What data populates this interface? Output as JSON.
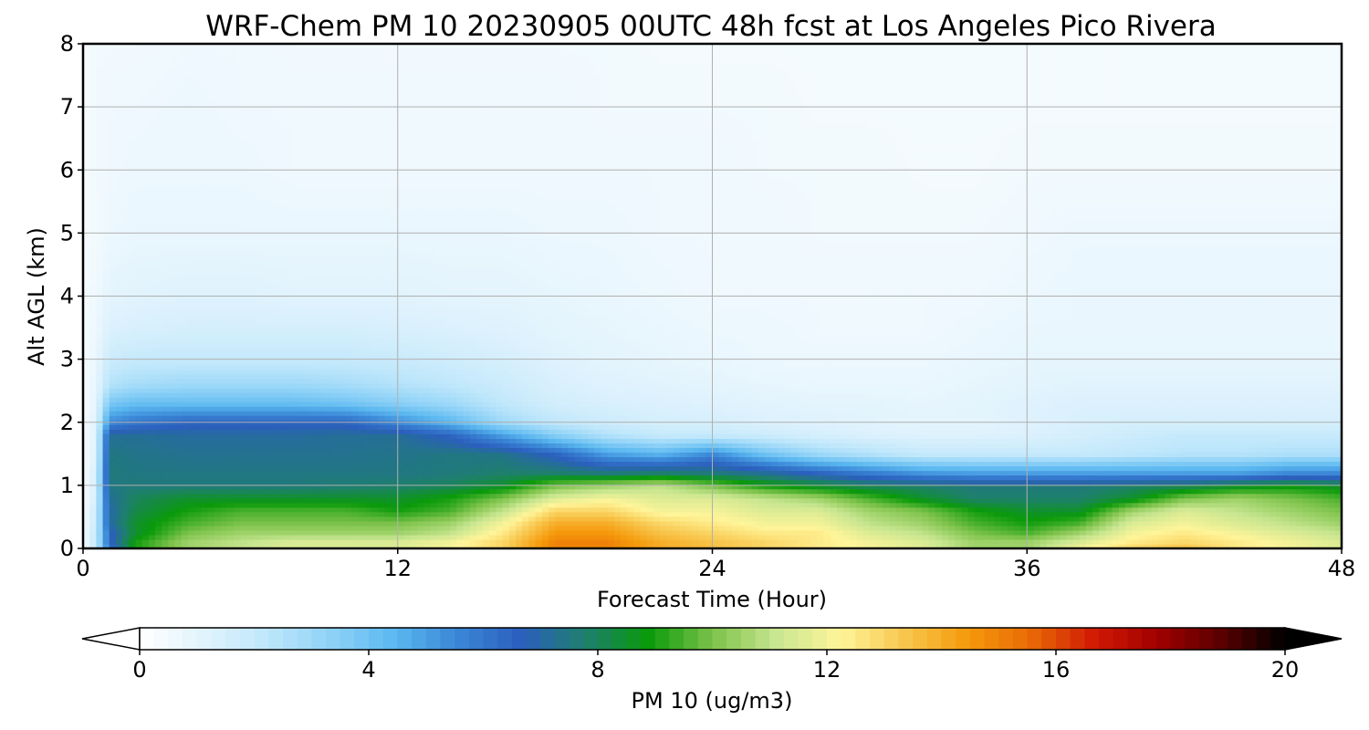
{
  "chart_data": {
    "type": "heatmap",
    "title": "WRF-Chem PM 10  20230905 00UTC 48h fcst at Los Angeles Pico Rivera",
    "xlabel": "Forecast Time (Hour)",
    "ylabel": "Alt AGL (km)",
    "xlim": [
      0,
      48
    ],
    "ylim": [
      0,
      8
    ],
    "xticks": [
      "0",
      "12",
      "24",
      "36",
      "48"
    ],
    "yticks": [
      "0",
      "1",
      "2",
      "3",
      "4",
      "5",
      "6",
      "7",
      "8"
    ],
    "grid": true,
    "colorbar": {
      "label": "PM 10  (ug/m3)",
      "range": [
        0,
        20
      ],
      "extend": "both",
      "ticks": [
        "0",
        "4",
        "8",
        "12",
        "16",
        "20"
      ],
      "orientation": "horizontal"
    },
    "x": [
      0,
      0.5,
      1,
      2,
      4,
      6,
      8,
      10,
      12,
      14,
      16,
      18,
      20,
      22,
      24,
      26,
      28,
      30,
      32,
      34,
      36,
      38,
      40,
      42,
      44,
      46,
      48
    ],
    "y": [
      0,
      0.1,
      0.25,
      0.4,
      0.6,
      0.8,
      1.0,
      1.2,
      1.5,
      1.8,
      2.0,
      2.3,
      2.6,
      3.0,
      3.5,
      4.0,
      5.0,
      6.0,
      7.0,
      8.0
    ],
    "z": [
      [
        0.5,
        2,
        6,
        9,
        10.5,
        11,
        11.5,
        11.5,
        11.5,
        12,
        13,
        15,
        15,
        14,
        13.5,
        13,
        12.5,
        12,
        11.5,
        10.5,
        10.5,
        12,
        13,
        13.5,
        12.5,
        12,
        11.5
      ],
      [
        0.5,
        2,
        6.5,
        9,
        10.5,
        11,
        11.5,
        11.5,
        11.5,
        12,
        13,
        15,
        15,
        14,
        13.5,
        13,
        12.5,
        12,
        11.5,
        10.5,
        10.5,
        11.5,
        12.5,
        13,
        12.5,
        12,
        11.5
      ],
      [
        0.5,
        2,
        6.5,
        8.5,
        10,
        10.5,
        10.5,
        10.5,
        10.5,
        11,
        12.5,
        14.5,
        14.5,
        13.5,
        13,
        12.5,
        12.5,
        11.5,
        11,
        10,
        9.5,
        10.5,
        12,
        12.5,
        12,
        11.5,
        11
      ],
      [
        0.4,
        1.8,
        7,
        8.5,
        9.5,
        10,
        10,
        10,
        10,
        10.5,
        12,
        14,
        14,
        13,
        12.5,
        12,
        12,
        11,
        10.5,
        9.5,
        9,
        9.5,
        11.5,
        12,
        11.5,
        11,
        10.5
      ],
      [
        0.4,
        1.8,
        7,
        8.2,
        9,
        9.5,
        9.5,
        9.5,
        9,
        9.5,
        11,
        13,
        13,
        12,
        12,
        11.5,
        11.5,
        10.5,
        10,
        9,
        8.5,
        8.5,
        10.5,
        11.5,
        11,
        10.5,
        10
      ],
      [
        0.3,
        1.5,
        7.2,
        8,
        8.5,
        8.5,
        8.5,
        8.5,
        8.5,
        9,
        10,
        11.5,
        12,
        11.5,
        11.5,
        11,
        10.5,
        9.5,
        8.5,
        7.8,
        7.8,
        7.8,
        8.5,
        10,
        10.5,
        10,
        9.5
      ],
      [
        0.3,
        1.5,
        7.5,
        7.6,
        7.6,
        7.6,
        7.6,
        7.7,
        7.8,
        8,
        8.5,
        10,
        10.5,
        11,
        10,
        9,
        8.5,
        8,
        7.8,
        7.6,
        7.6,
        7.6,
        7.8,
        8,
        8.5,
        8.8,
        8.5
      ],
      [
        0.3,
        1.5,
        7.6,
        7.5,
        7.5,
        7.5,
        7.5,
        7.5,
        7.5,
        7.6,
        7.8,
        7.8,
        7.6,
        7.8,
        7.6,
        7.2,
        6.5,
        5.8,
        5.2,
        5,
        5,
        5,
        5,
        5,
        5,
        5.5,
        5.5
      ],
      [
        0.3,
        1.2,
        7.5,
        7.4,
        7.3,
        7.3,
        7.3,
        7.3,
        7.4,
        7.5,
        7.4,
        6.5,
        5,
        4.5,
        5.5,
        4,
        3,
        2.5,
        2,
        2,
        2,
        2,
        2.2,
        2.4,
        2.4,
        2.6,
        2.6
      ],
      [
        0.3,
        1.2,
        7.2,
        7.2,
        7.1,
        7.1,
        7.1,
        7.2,
        7.2,
        6.5,
        5,
        3.5,
        2.5,
        2,
        2,
        1.8,
        1.5,
        1.3,
        1.2,
        1.2,
        1.3,
        1.5,
        1.8,
        2,
        2,
        2,
        2
      ],
      [
        0.3,
        1.2,
        5.5,
        6,
        6.5,
        6.5,
        6.5,
        6.5,
        5.5,
        4.5,
        3,
        2.2,
        1.8,
        1.5,
        1.5,
        1.3,
        1.2,
        1.1,
        1,
        1,
        1.2,
        1.4,
        1.5,
        1.5,
        1.5,
        1.5,
        1.5
      ],
      [
        0.3,
        1,
        3.8,
        4.2,
        4.2,
        4.2,
        4.2,
        4,
        3.5,
        3,
        2.2,
        1.6,
        1.4,
        1.3,
        1.2,
        1.1,
        1,
        1,
        0.9,
        1,
        1.2,
        1.3,
        1.3,
        1.3,
        1.3,
        1.3,
        1.3
      ],
      [
        0.3,
        0.9,
        2.5,
        2.8,
        3,
        3,
        3,
        2.8,
        2.5,
        2.2,
        1.8,
        1.4,
        1.2,
        1.1,
        1,
        0.9,
        0.8,
        0.8,
        0.8,
        0.9,
        1,
        1.1,
        1.1,
        1.1,
        1.1,
        1.1,
        1.1
      ],
      [
        0.3,
        0.8,
        1.8,
        2,
        2,
        2,
        2,
        2,
        1.9,
        1.7,
        1.5,
        1.2,
        1,
        0.9,
        0.8,
        0.7,
        0.7,
        0.7,
        0.7,
        0.8,
        0.9,
        0.9,
        0.9,
        0.9,
        0.9,
        0.9,
        0.9
      ],
      [
        0.3,
        0.7,
        1.3,
        1.4,
        1.5,
        1.5,
        1.5,
        1.5,
        1.4,
        1.3,
        1.2,
        1,
        0.9,
        0.8,
        0.7,
        0.7,
        0.6,
        0.6,
        0.6,
        0.7,
        0.8,
        0.8,
        0.8,
        0.8,
        0.8,
        0.8,
        0.8
      ],
      [
        0.3,
        0.6,
        1,
        1.1,
        1.2,
        1.2,
        1.1,
        1.1,
        1.1,
        1,
        1,
        0.9,
        0.8,
        0.7,
        0.6,
        0.6,
        0.6,
        0.6,
        0.6,
        0.6,
        0.7,
        0.8,
        0.8,
        0.8,
        0.8,
        0.8,
        0.8
      ],
      [
        0.3,
        0.5,
        0.7,
        0.8,
        0.8,
        0.8,
        0.8,
        0.8,
        0.8,
        0.8,
        0.8,
        0.7,
        0.7,
        0.6,
        0.6,
        0.6,
        0.5,
        0.5,
        0.5,
        0.5,
        0.6,
        0.7,
        0.7,
        0.7,
        0.7,
        0.7,
        0.7
      ],
      [
        0.3,
        0.5,
        0.6,
        0.7,
        0.7,
        0.7,
        0.6,
        0.6,
        0.6,
        0.6,
        0.6,
        0.6,
        0.6,
        0.6,
        0.6,
        0.5,
        0.5,
        0.5,
        0.4,
        0.4,
        0.5,
        0.5,
        0.5,
        0.5,
        0.5,
        0.5,
        0.5
      ],
      [
        0.3,
        0.5,
        0.6,
        0.6,
        0.7,
        0.6,
        0.6,
        0.6,
        0.6,
        0.6,
        0.6,
        0.6,
        0.5,
        0.5,
        0.5,
        0.5,
        0.4,
        0.4,
        0.4,
        0.4,
        0.4,
        0.4,
        0.4,
        0.4,
        0.4,
        0.4,
        0.4
      ],
      [
        0.3,
        0.5,
        0.5,
        0.5,
        0.6,
        0.6,
        0.5,
        0.5,
        0.5,
        0.5,
        0.5,
        0.5,
        0.5,
        0.4,
        0.4,
        0.4,
        0.4,
        0.4,
        0.4,
        0.4,
        0.4,
        0.4,
        0.4,
        0.4,
        0.4,
        0.4,
        0.4
      ]
    ]
  },
  "colormap": [
    "#ffffff",
    "#e1f3fd",
    "#bfe7fb",
    "#8fd2f7",
    "#5bb8f0",
    "#3a86d6",
    "#2b5fbd",
    "#1e7f6e",
    "#0a9a0a",
    "#7cc24a",
    "#c8e690",
    "#fff59a",
    "#f8c850",
    "#f59a0c",
    "#e86a06",
    "#d11a04",
    "#a00000",
    "#5a0000",
    "#000000"
  ]
}
